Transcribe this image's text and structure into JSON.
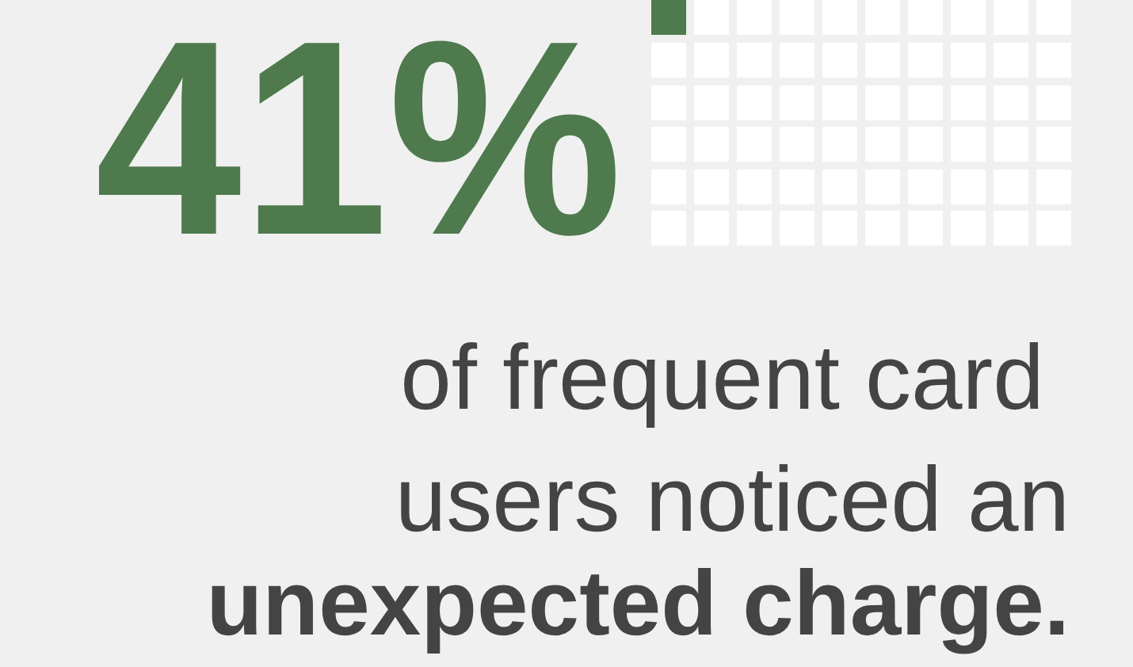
{
  "chart_data": {
    "type": "other",
    "color": "#4e7a4e",
    "categories": [
      null
    ],
    "values": [
      41
    ],
    "value_labels": [
      "41%"
    ],
    "subtitle": "of frequent card users noticed an",
    "annotations": [
      "unexpected charge."
    ]
  }
}
